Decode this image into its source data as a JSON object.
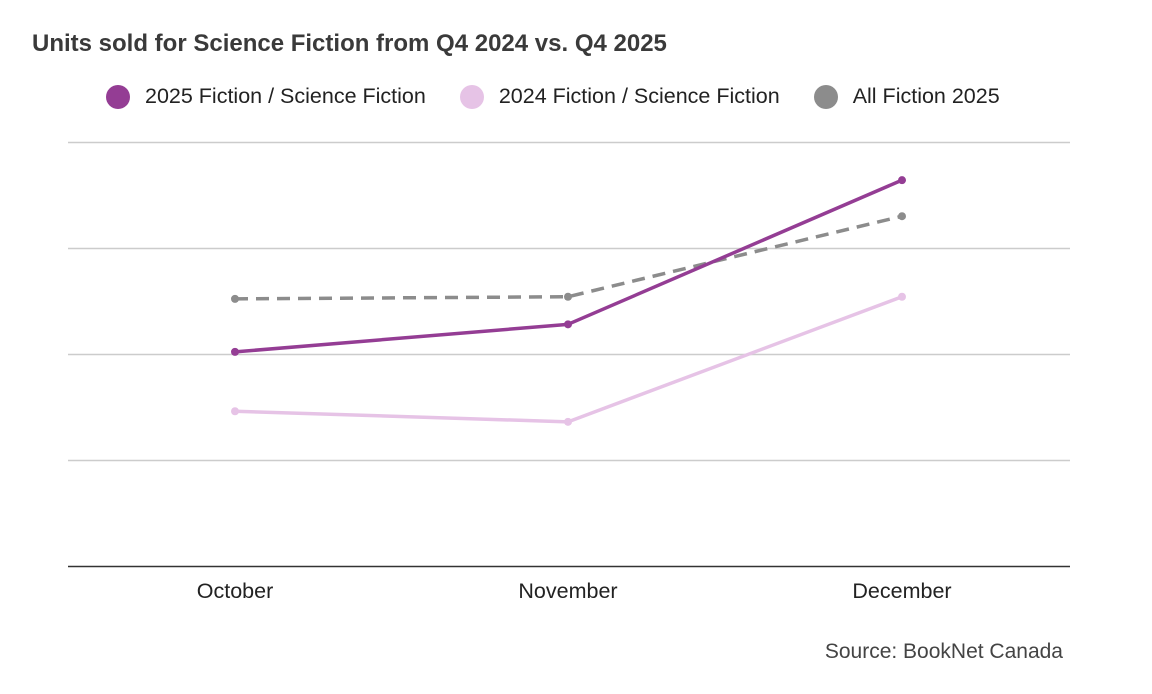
{
  "chart_data": {
    "type": "line",
    "title": "Units sold for Science Fiction from Q4 2024 vs. Q4 2025",
    "categories": [
      "October",
      "November",
      "December"
    ],
    "xlabel": "",
    "ylabel": "",
    "ylim": [
      0,
      100
    ],
    "yticks_shown": false,
    "grid": true,
    "legend_position": "top",
    "series": [
      {
        "name": "2025 Fiction / Science Fiction",
        "color": "#943d94",
        "dashed": false,
        "values": [
          50.5,
          57,
          91
        ]
      },
      {
        "name": "2024 Fiction / Science Fiction",
        "color": "#e6c3e6",
        "dashed": false,
        "values": [
          36.5,
          34,
          63.5
        ]
      },
      {
        "name": "All Fiction 2025",
        "color": "#8c8c8c",
        "dashed": true,
        "values": [
          63,
          63.5,
          82.5
        ]
      }
    ],
    "source": "Source: BookNet Canada"
  }
}
